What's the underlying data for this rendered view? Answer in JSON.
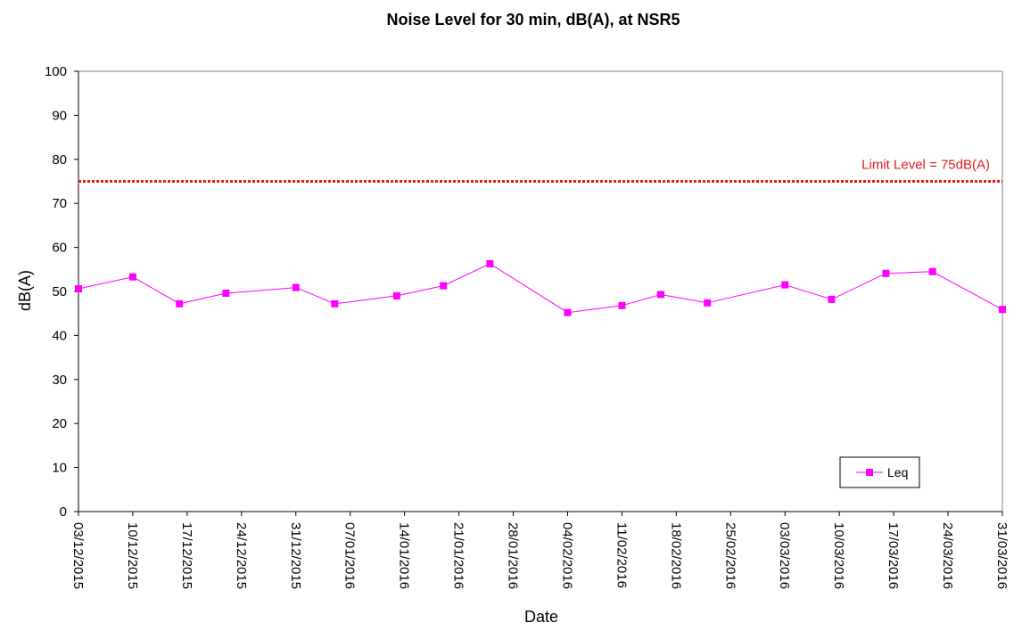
{
  "chart_data": {
    "type": "line",
    "title": "Noise Level for 30 min, dB(A), at NSR5",
    "xlabel": "Date",
    "ylabel": "dB(A)",
    "ylim": [
      0,
      100
    ],
    "yticks": [
      0,
      10,
      20,
      30,
      40,
      50,
      60,
      70,
      80,
      90,
      100
    ],
    "xlim": [
      "2015-12-03",
      "2016-03-31"
    ],
    "xtick_labels": [
      "03/12/2015",
      "10/12/2015",
      "17/12/2015",
      "24/12/2015",
      "31/12/2015",
      "07/01/2016",
      "14/01/2016",
      "21/01/2016",
      "28/01/2016",
      "04/02/2016",
      "11/02/2016",
      "18/02/2016",
      "25/02/2016",
      "03/03/2016",
      "10/03/2016",
      "17/03/2016",
      "24/03/2016",
      "31/03/2016"
    ],
    "xtick_dates": [
      "2015-12-03",
      "2015-12-10",
      "2015-12-17",
      "2015-12-24",
      "2015-12-31",
      "2016-01-07",
      "2016-01-14",
      "2016-01-21",
      "2016-01-28",
      "2016-02-04",
      "2016-02-11",
      "2016-02-18",
      "2016-02-25",
      "2016-03-03",
      "2016-03-10",
      "2016-03-17",
      "2016-03-24",
      "2016-03-31"
    ],
    "grid": false,
    "legend_position": "bottom-right",
    "series": [
      {
        "name": "Leq",
        "color": "#ff00ff",
        "marker": "square",
        "points": [
          {
            "x": "2015-12-03",
            "y": 50.6
          },
          {
            "x": "2015-12-10",
            "y": 53.3
          },
          {
            "x": "2015-12-16",
            "y": 47.2
          },
          {
            "x": "2015-12-22",
            "y": 49.6
          },
          {
            "x": "2015-12-31",
            "y": 50.9
          },
          {
            "x": "2016-01-05",
            "y": 47.2
          },
          {
            "x": "2016-01-13",
            "y": 49.0
          },
          {
            "x": "2016-01-19",
            "y": 51.3
          },
          {
            "x": "2016-01-25",
            "y": 56.3
          },
          {
            "x": "2016-02-04",
            "y": 45.2
          },
          {
            "x": "2016-02-11",
            "y": 46.8
          },
          {
            "x": "2016-02-16",
            "y": 49.3
          },
          {
            "x": "2016-02-22",
            "y": 47.4
          },
          {
            "x": "2016-03-03",
            "y": 51.5
          },
          {
            "x": "2016-03-09",
            "y": 48.2
          },
          {
            "x": "2016-03-16",
            "y": 54.1
          },
          {
            "x": "2016-03-22",
            "y": 54.5
          },
          {
            "x": "2016-03-31",
            "y": 45.9
          }
        ]
      }
    ],
    "limit_line": {
      "value": 75,
      "label": "Limit Level = 75dB(A)",
      "color": "#e31a1a",
      "style": "dotted"
    }
  }
}
